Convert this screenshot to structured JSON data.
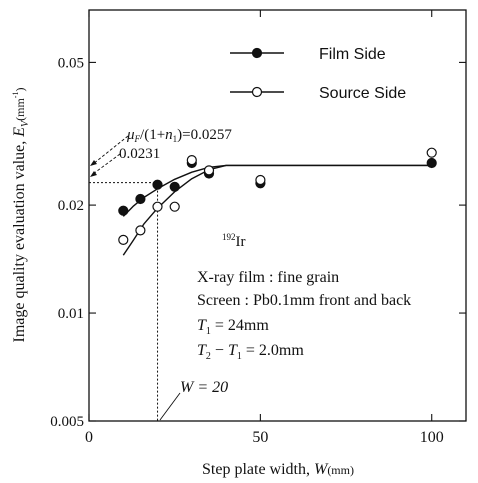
{
  "chart_data": {
    "type": "scatter",
    "xlabel_text": "Step plate width,",
    "xlabel_sym": "W",
    "xlabel_unit": "(mm)",
    "ylabel_text": "Image quality evaluation value,",
    "ylabel_sym": "E",
    "ylabel_sub": "V",
    "ylabel_unit": "(mm",
    "ylabel_unit_sup": "-1",
    "ylabel_unit_close": ")",
    "xlim": [
      0,
      110
    ],
    "ylim": [
      0.005,
      0.07
    ],
    "y_scale": "log",
    "x_ticks": [
      0,
      50,
      100
    ],
    "x_tick_labels": [
      "0",
      "50",
      "100"
    ],
    "y_ticks": [
      0.005,
      0.01,
      0.02,
      0.05
    ],
    "y_tick_labels": [
      "0.005",
      "0.01",
      "0.02",
      "0.05"
    ],
    "legend_position": "top-right",
    "series": [
      {
        "name": "Film Side",
        "marker": "filled-circle",
        "x": [
          10,
          15,
          20,
          25,
          30,
          35,
          50,
          100
        ],
        "y": [
          0.0193,
          0.0208,
          0.0228,
          0.0225,
          0.0262,
          0.0245,
          0.023,
          0.0262
        ],
        "fit_x": [
          10,
          13,
          16,
          20,
          25,
          30,
          35,
          40,
          100
        ],
        "fit_y": [
          0.0186,
          0.0199,
          0.021,
          0.0222,
          0.0236,
          0.0247,
          0.0255,
          0.0258,
          0.0258
        ]
      },
      {
        "name": "Source Side",
        "marker": "open-circle",
        "x": [
          10,
          15,
          20,
          25,
          30,
          35,
          50,
          100
        ],
        "y": [
          0.016,
          0.017,
          0.0198,
          0.0198,
          0.0267,
          0.025,
          0.0235,
          0.028
        ],
        "fit_x": [
          10,
          13,
          16,
          20,
          25,
          30,
          35,
          40,
          100
        ],
        "fit_y": [
          0.0145,
          0.016,
          0.0177,
          0.0196,
          0.0218,
          0.0237,
          0.0251,
          0.0258,
          0.0258
        ]
      }
    ],
    "reference_lines": {
      "y_level": 0.0231,
      "x_level": 20
    },
    "annotations": {
      "mu_label_prefix": "μ",
      "mu_label_sub": "F",
      "mu_label_mid": "/(1+",
      "mu_label_n": "n",
      "mu_label_n_sub": "1",
      "mu_label_suffix": ")=0.0257",
      "value_0231": "0.0231",
      "w_label": "W = 20",
      "isotope_sup": "192",
      "isotope": "Ir",
      "film": "X-ray film : fine grain",
      "screen": "Screen : Pb0.1mm front and back",
      "t1_sym": "T",
      "t1_sub": "1",
      "t1_val": " = 24mm",
      "t2_sym_a": "T",
      "t2_sub_a": "2",
      "t2_mid": " − ",
      "t2_sym_b": "T",
      "t2_sub_b": "1",
      "t2_val": " = 2.0mm"
    }
  }
}
